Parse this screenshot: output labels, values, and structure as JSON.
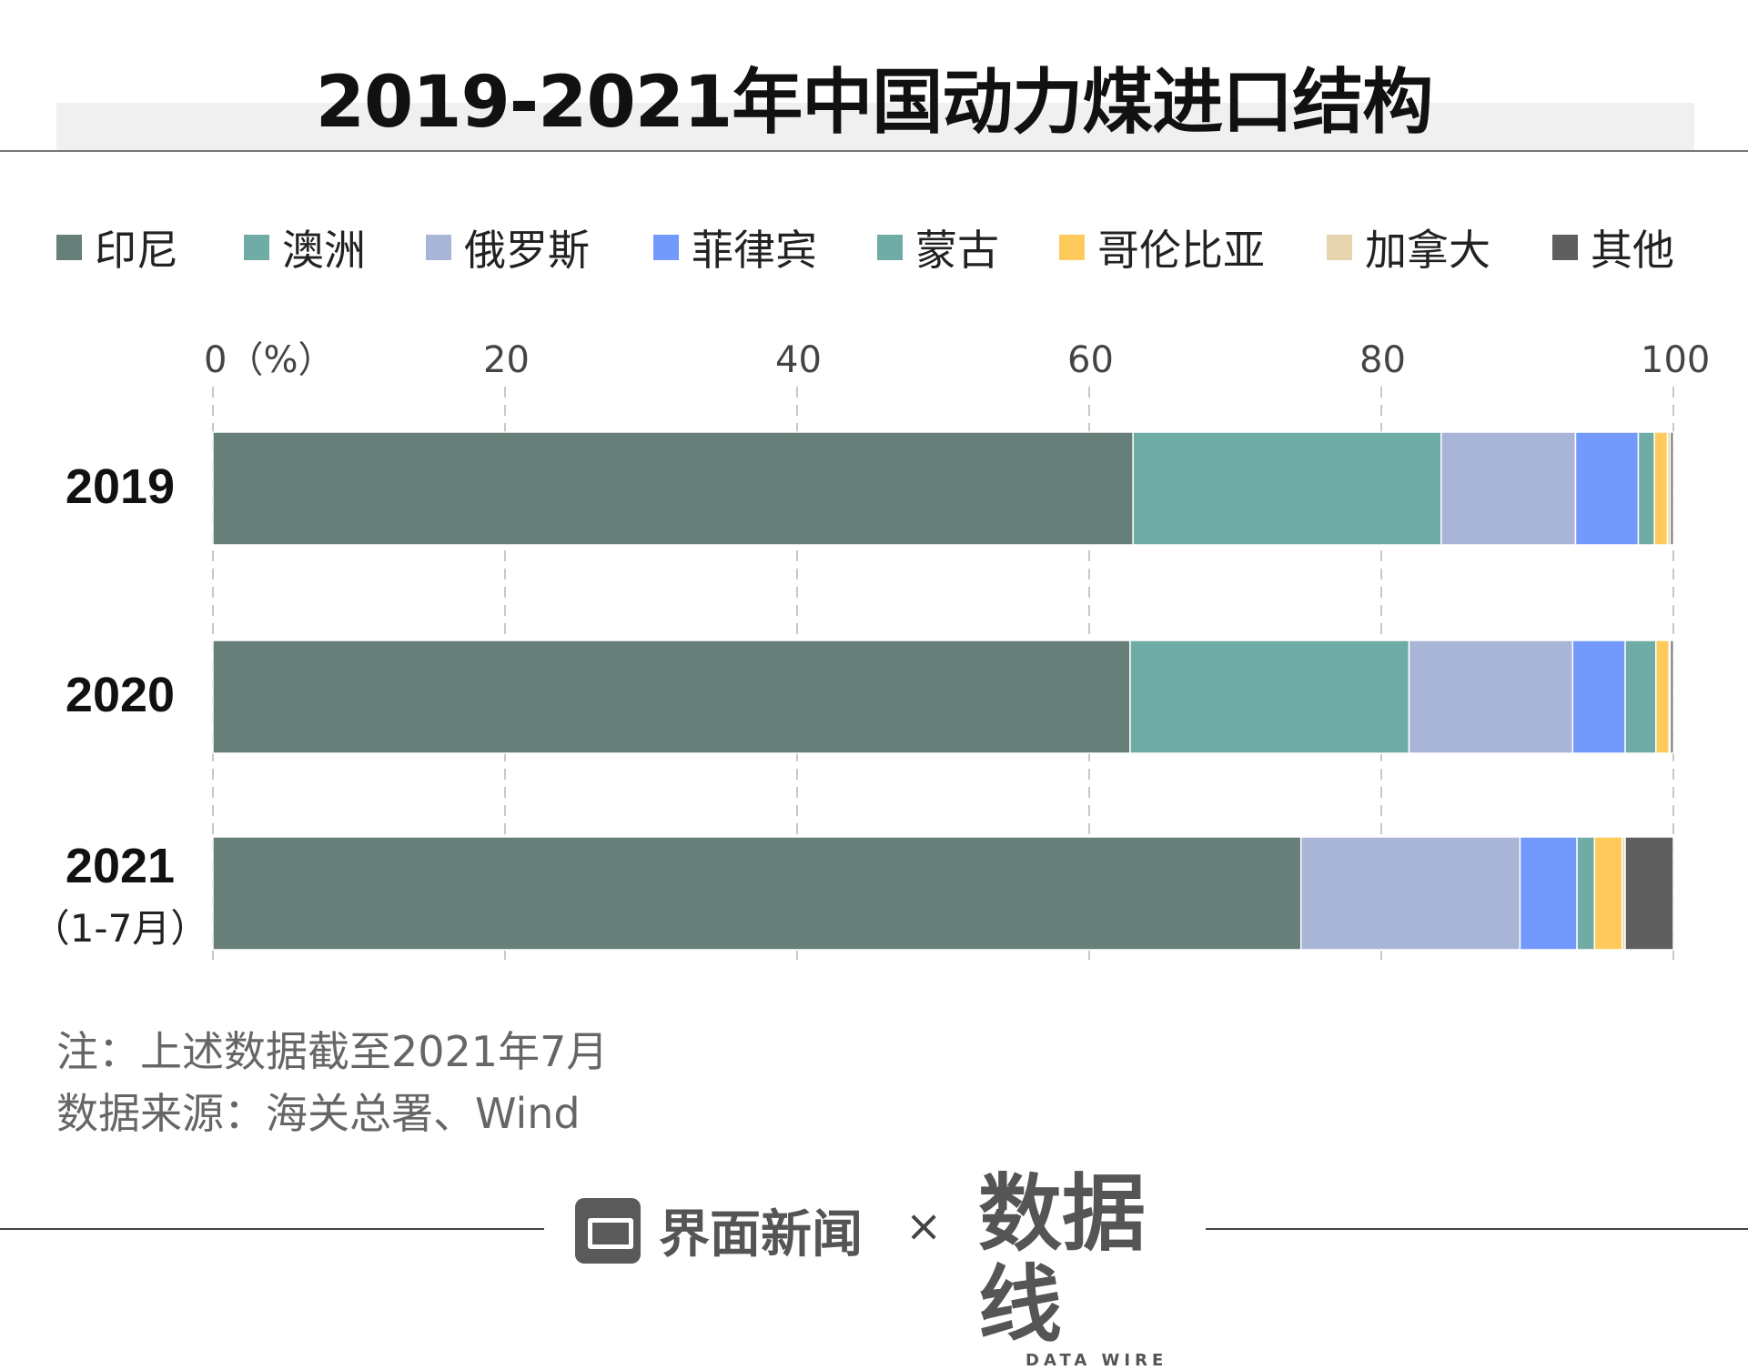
{
  "title": "2019-2021年中国动力煤进口结构",
  "legend": [
    {
      "label": "印尼",
      "color": "#677f79"
    },
    {
      "label": "澳洲",
      "color": "#6eaca5"
    },
    {
      "label": "俄罗斯",
      "color": "#a9b5d6"
    },
    {
      "label": "菲律宾",
      "color": "#7399fc"
    },
    {
      "label": "蒙古",
      "color": "#6eaca5"
    },
    {
      "label": "哥伦比亚",
      "color": "#fdca5b"
    },
    {
      "label": "加拿大",
      "color": "#e7d5b0"
    },
    {
      "label": "其他",
      "color": "#5f5f5f"
    }
  ],
  "chart_data": {
    "type": "bar",
    "orientation": "horizontal",
    "stacked": true,
    "axis_unit": "0（%）",
    "xlim": [
      0,
      100
    ],
    "xticks": [
      0,
      20,
      40,
      60,
      80,
      100
    ],
    "categories": [
      "2019",
      "2020",
      "2021"
    ],
    "category_sublabels": [
      "",
      "",
      "（1-7月）"
    ],
    "series": [
      {
        "name": "印尼",
        "color": "#677f79",
        "values": [
          63.0,
          62.8,
          74.5
        ]
      },
      {
        "name": "澳洲",
        "color": "#6eaca5",
        "values": [
          21.1,
          19.1,
          0.0
        ]
      },
      {
        "name": "俄罗斯",
        "color": "#a9b5d6",
        "values": [
          9.2,
          11.2,
          15.0
        ]
      },
      {
        "name": "菲律宾",
        "color": "#7399fc",
        "values": [
          4.3,
          3.6,
          3.9
        ]
      },
      {
        "name": "蒙古",
        "color": "#6eaca5",
        "values": [
          1.1,
          2.1,
          1.2
        ]
      },
      {
        "name": "哥伦比亚",
        "color": "#fdca5b",
        "values": [
          0.9,
          0.9,
          1.9
        ]
      },
      {
        "name": "加拿大",
        "color": "#e7d5b0",
        "values": [
          0.2,
          0.1,
          0.2
        ]
      },
      {
        "name": "其他",
        "color": "#5f5f5f",
        "values": [
          0.2,
          0.2,
          3.3
        ]
      }
    ],
    "grid": true
  },
  "notes": {
    "note": "注：上述数据截至2021年7月",
    "source": "数据来源：海关总署、Wind"
  },
  "footer": {
    "brand": "界面新闻",
    "cross": "×",
    "partner": "数据线",
    "partner_sub": "DATA WIRE"
  }
}
